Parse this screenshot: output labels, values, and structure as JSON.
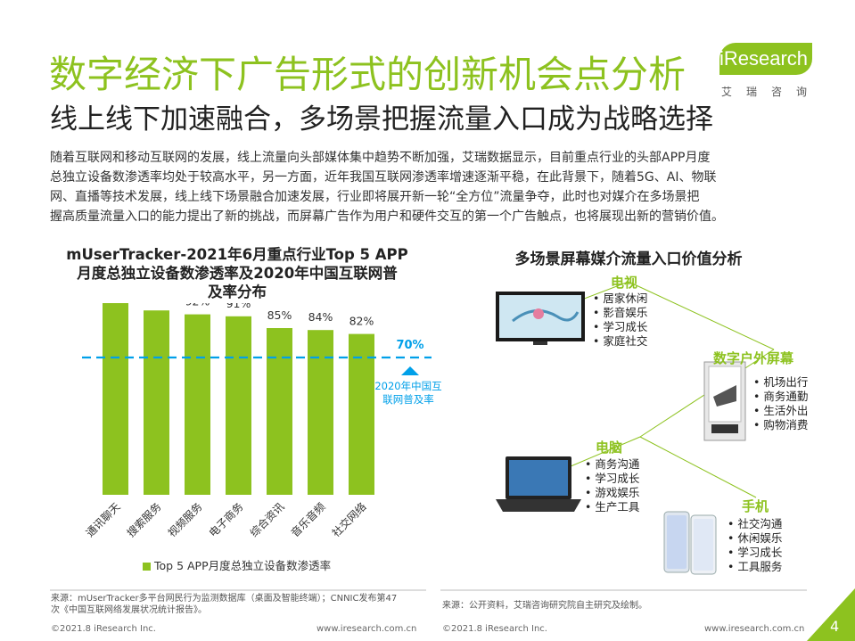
{
  "header": {
    "title": "数字经济下广告形式的创新机会点分析",
    "subtitle": "线上线下加速融合，多场景把握流量入口成为战略选择"
  },
  "logo": {
    "brand": "iResearch",
    "cn": "艾瑞咨询"
  },
  "paragraph": {
    "line1": "随着互联网和移动互联网的发展，线上流量向头部媒体集中趋势不断加强，艾瑞数据显示，目前重点行业的头部APP月度",
    "line2": "总独立设备数渗透率均处于较高水平，另一方面，近年我国互联网渗透率增速逐渐平稳，在此背景下，随着5G、AI、物联",
    "line3": "网、直播等技术发展，线上线下场景融合加速发展，行业即将展开新一轮“全方位”流量争夺，此时也对媒介在多场景把",
    "line4": "握高质量流量入口的能力提出了新的挑战，而屏幕广告作为用户和硬件交互的第一个广告触点，也将展现出新的营销价值。"
  },
  "chart_data": {
    "type": "bar",
    "title_lines": [
      "mUserTracker-2021年6月重点行业Top 5 APP",
      "月度总独立设备数渗透率及2020年中国互联网普",
      "及率分布"
    ],
    "categories": [
      "通讯聊天",
      "搜索服务",
      "视频服务",
      "电子商务",
      "综合资讯",
      "音乐音频",
      "社交网络"
    ],
    "values": [
      98,
      94,
      92,
      91,
      85,
      84,
      82
    ],
    "value_labels": [
      "98%",
      "94%",
      "92%",
      "91%",
      "85%",
      "84%",
      "82%"
    ],
    "series_name": "Top 5 APP月度总独立设备数渗透率",
    "reference": {
      "value": 70,
      "label": "70%",
      "note_line1": "2020年中国互",
      "note_line2": "联网普及率"
    },
    "ylim": [
      0,
      100
    ],
    "bar_color": "#8dc21f",
    "reference_color": "#00a0e9"
  },
  "right": {
    "title": "多场景屏幕媒介流量入口价值分析",
    "devices": [
      {
        "name": "电视",
        "items": [
          "居家休闲",
          "影音娱乐",
          "学习成长",
          "家庭社交"
        ]
      },
      {
        "name": "数字户外屏幕",
        "items": [
          "机场出行",
          "商务通勤",
          "生活外出",
          "购物消费"
        ]
      },
      {
        "name": "电脑",
        "items": [
          "商务沟通",
          "学习成长",
          "游戏娱乐",
          "生产工具"
        ]
      },
      {
        "name": "手机",
        "items": [
          "社交沟通",
          "休闲娱乐",
          "学习成长",
          "工具服务"
        ]
      }
    ]
  },
  "sources": {
    "left_line1": "来源：mUserTracker多平台网民行为监测数据库（桌面及智能终端）；CNNIC发布第47",
    "left_line2": "次《中国互联网络发展状况统计报告》。",
    "right": "来源：公开资料，艾瑞咨询研究院自主研究及绘制。"
  },
  "footer": {
    "copyright_left": "©2021.8 iResearch Inc.",
    "url_left": "www.iresearch.com.cn",
    "copyright_right": "©2021.8 iResearch Inc.",
    "url_right": "www.iresearch.com.cn",
    "page": "4"
  },
  "colors": {
    "accent": "#8dc21f",
    "reference": "#00a0e9"
  }
}
